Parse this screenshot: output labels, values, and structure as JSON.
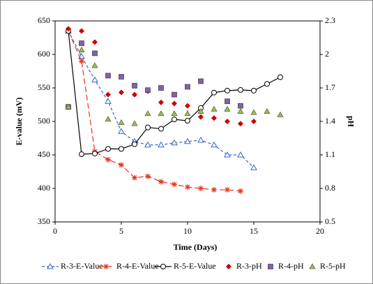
{
  "chart_data": {
    "type": "scatter",
    "xlabel": "Time (Days)",
    "ylabel": "E-value (mV)",
    "y2label": "pH",
    "xlim": [
      0,
      20
    ],
    "xticks": [
      0,
      5,
      10,
      15,
      20
    ],
    "ylim": [
      350,
      650
    ],
    "yticks": [
      350,
      400,
      450,
      500,
      550,
      600,
      650
    ],
    "y2lim": [
      0.5,
      2.3
    ],
    "y2ticks": [
      0.5,
      0.8,
      1.1,
      1.4,
      1.7,
      2,
      2.3
    ],
    "legend": "bottom",
    "series": [
      {
        "name": "R-3-E-Value",
        "color": "#3366cc",
        "line": "dashed",
        "marker": "triangle-open",
        "x": [
          1,
          2,
          3,
          4,
          5,
          6,
          7,
          8,
          9,
          10,
          11,
          12,
          13,
          14,
          15
        ],
        "values": [
          635,
          597,
          562,
          530,
          485,
          470,
          465,
          465,
          468,
          470,
          472,
          465,
          450,
          450,
          431
        ]
      },
      {
        "name": "R-4-E-Value",
        "color": "#e8331c",
        "line": "longdash",
        "marker": "asterisk",
        "x": [
          1,
          2,
          3,
          4,
          5,
          6,
          7,
          8,
          9,
          10,
          11,
          12,
          13,
          14
        ],
        "values": [
          635,
          590,
          455,
          443,
          435,
          416,
          418,
          410,
          406,
          402,
          400,
          398,
          398,
          396
        ]
      },
      {
        "name": "R-5-E-Value",
        "color": "#000000",
        "line": "solid",
        "marker": "circle-open",
        "x": [
          1,
          2,
          3,
          4,
          5,
          6,
          7,
          8,
          9,
          10,
          11,
          12,
          13,
          14,
          15,
          16,
          17
        ],
        "values": [
          635,
          451,
          452,
          459,
          459,
          466,
          491,
          489,
          503,
          501,
          520,
          543,
          546,
          547,
          546,
          556,
          566
        ]
      },
      {
        "name": "R-3-pH",
        "color": "#cc0000",
        "line": "none",
        "marker": "diamond",
        "axis": "y2",
        "x": [
          1,
          2,
          3,
          4,
          5,
          6,
          7,
          8,
          9,
          10,
          11,
          12,
          13,
          14,
          15
        ],
        "values": [
          2.23,
          2.21,
          2.11,
          1.64,
          1.66,
          1.64,
          1.67,
          1.57,
          1.56,
          1.54,
          1.44,
          1.43,
          1.4,
          1.38,
          1.4
        ]
      },
      {
        "name": "R-4-pH",
        "color": "#8064a2",
        "line": "none",
        "marker": "square",
        "axis": "y2",
        "x": [
          1,
          2,
          3,
          4,
          5,
          6,
          7,
          8,
          9,
          10,
          11,
          13,
          14
        ],
        "values": [
          1.53,
          2.1,
          2.01,
          1.81,
          1.8,
          1.72,
          1.68,
          1.7,
          1.64,
          1.71,
          1.76,
          1.58,
          1.54
        ]
      },
      {
        "name": "R-5-pH",
        "color": "#9bbb59",
        "line": "none",
        "marker": "triangle",
        "axis": "y2",
        "x": [
          1,
          2,
          3,
          4,
          5,
          6,
          7,
          8,
          9,
          10,
          11,
          12,
          13,
          14,
          15,
          16,
          17
        ],
        "values": [
          1.53,
          2.04,
          1.9,
          1.42,
          1.39,
          1.38,
          1.47,
          1.47,
          1.47,
          1.47,
          1.49,
          1.51,
          1.51,
          1.49,
          1.48,
          1.49,
          1.46
        ]
      }
    ]
  }
}
